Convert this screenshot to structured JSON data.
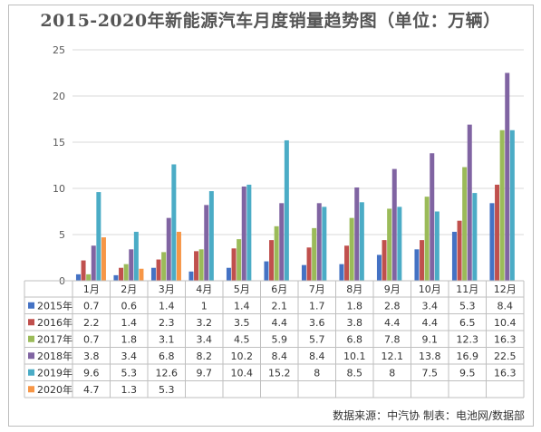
{
  "chart_data": {
    "type": "bar",
    "title": "2015-2020年新能源汽车月度销量趋势图（单位：万辆）",
    "categories": [
      "1月",
      "2月",
      "3月",
      "4月",
      "5月",
      "6月",
      "7月",
      "8月",
      "9月",
      "10月",
      "11月",
      "12月"
    ],
    "ylim": [
      0,
      25
    ],
    "yticks": [
      0,
      5,
      10,
      15,
      20,
      25
    ],
    "grid": true,
    "legend_placement": "data-table",
    "series": [
      {
        "name": "2015年",
        "color": "#4472c4",
        "values": [
          0.7,
          0.6,
          1.4,
          1.0,
          1.4,
          2.1,
          1.7,
          1.8,
          2.8,
          3.4,
          5.3,
          8.4
        ]
      },
      {
        "name": "2016年",
        "color": "#c0504d",
        "values": [
          2.2,
          1.4,
          2.3,
          3.2,
          3.5,
          4.4,
          3.6,
          3.8,
          4.4,
          4.4,
          6.5,
          10.4
        ]
      },
      {
        "name": "2017年",
        "color": "#9bbb59",
        "values": [
          0.7,
          1.8,
          3.1,
          3.4,
          4.5,
          5.9,
          5.7,
          6.8,
          7.8,
          9.1,
          12.3,
          16.3
        ]
      },
      {
        "name": "2018年",
        "color": "#8064a2",
        "values": [
          3.8,
          3.4,
          6.8,
          8.2,
          10.2,
          8.4,
          8.4,
          10.1,
          12.1,
          13.8,
          16.9,
          22.5
        ]
      },
      {
        "name": "2019年",
        "color": "#4bacc6",
        "values": [
          9.6,
          5.3,
          12.6,
          9.7,
          10.4,
          15.2,
          8,
          8.5,
          8,
          7.5,
          9.5,
          16.3
        ]
      },
      {
        "name": "2020年",
        "color": "#f79646",
        "values": [
          4.7,
          1.3,
          5.3,
          null,
          null,
          null,
          null,
          null,
          null,
          null,
          null,
          null
        ]
      }
    ]
  },
  "footer": {
    "source": "数据来源：中汽协  制表：电池网/数据部"
  }
}
